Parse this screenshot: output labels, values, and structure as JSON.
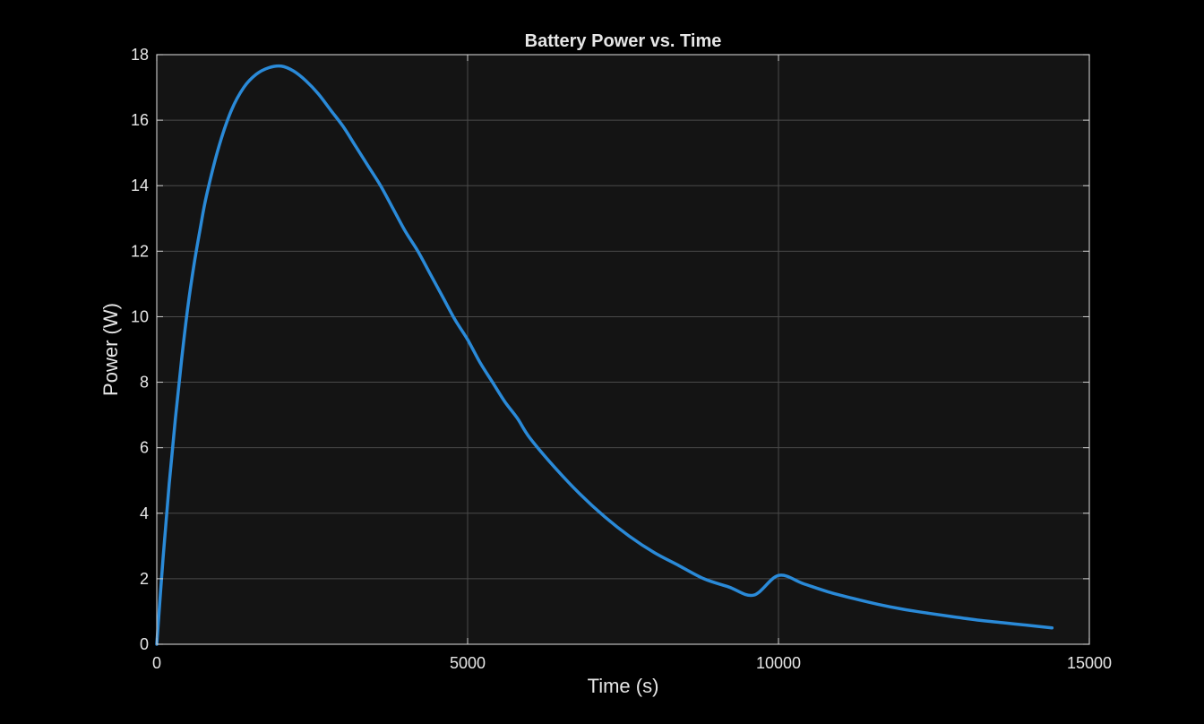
{
  "chart_data": {
    "type": "line",
    "title": "Battery Power vs. Time",
    "xlabel": "Time (s)",
    "ylabel": "Power (W)",
    "xlim": [
      0,
      15000
    ],
    "ylim": [
      0,
      18
    ],
    "xticks": [
      0,
      5000,
      10000,
      15000
    ],
    "yticks": [
      0,
      2,
      4,
      6,
      8,
      10,
      12,
      14,
      16,
      18
    ],
    "grid": true,
    "series": [
      {
        "color": "#2a8ad8",
        "x": [
          0,
          100,
          200,
          300,
          400,
          500,
          600,
          700,
          800,
          1000,
          1200,
          1400,
          1600,
          1800,
          2000,
          2200,
          2400,
          2600,
          2800,
          3000,
          3200,
          3400,
          3600,
          3800,
          4000,
          4200,
          4400,
          4600,
          4800,
          5000,
          5200,
          5400,
          5600,
          5800,
          6000,
          6400,
          6800,
          7200,
          7600,
          8000,
          8400,
          8800,
          9200,
          9600,
          10000,
          10400,
          10800,
          11200,
          11600,
          12000,
          12400,
          12800,
          13200,
          13600,
          14000,
          14400
        ],
        "y": [
          0,
          2.6,
          4.9,
          6.9,
          8.7,
          10.3,
          11.6,
          12.7,
          13.7,
          15.2,
          16.3,
          17.0,
          17.4,
          17.6,
          17.65,
          17.5,
          17.2,
          16.8,
          16.3,
          15.8,
          15.2,
          14.6,
          14.0,
          13.3,
          12.6,
          12.0,
          11.3,
          10.6,
          9.9,
          9.3,
          8.6,
          8.0,
          7.4,
          6.9,
          6.3,
          5.4,
          4.6,
          3.9,
          3.3,
          2.8,
          2.4,
          2.0,
          1.75,
          1.5,
          2.1,
          1.85,
          1.6,
          1.4,
          1.22,
          1.07,
          0.95,
          0.84,
          0.74,
          0.66,
          0.58,
          0.5
        ]
      }
    ]
  },
  "colors": {
    "background": "#000000",
    "plot_area": "#141414",
    "line": "#2a8ad8",
    "text": "#e6e6e6",
    "frame": "#bfbfbf"
  }
}
